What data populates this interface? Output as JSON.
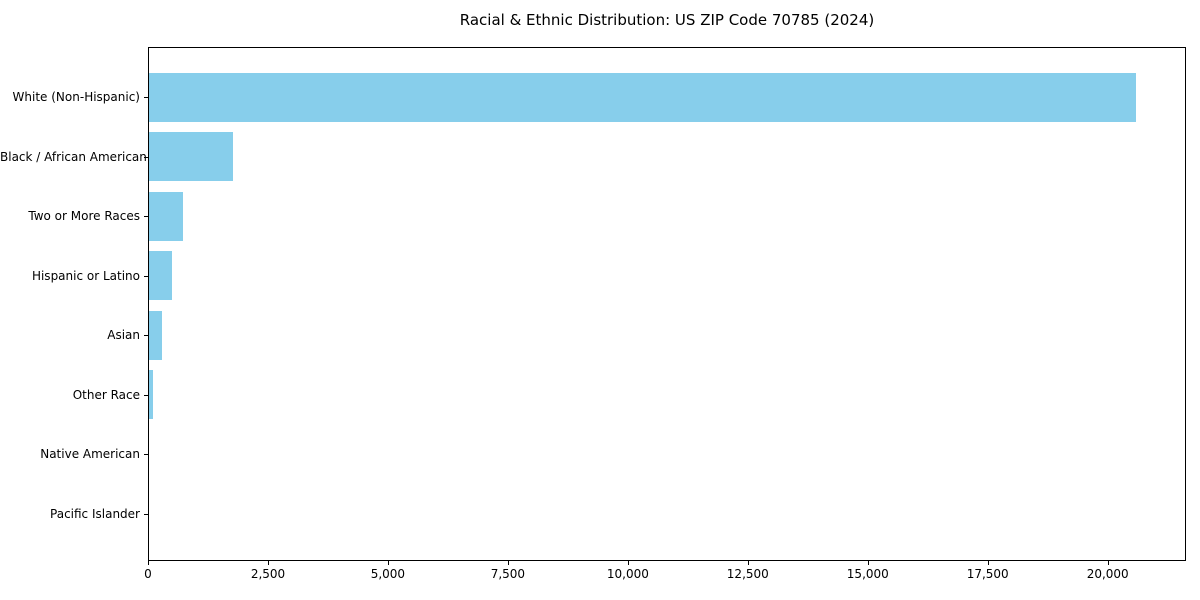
{
  "chart_data": {
    "type": "bar",
    "orientation": "horizontal",
    "title": "Racial & Ethnic Distribution: US ZIP Code 70785 (2024)",
    "categories": [
      "White (Non-Hispanic)",
      "Black / African American",
      "Two or More Races",
      "Hispanic or Latino",
      "Asian",
      "Other Race",
      "Native American",
      "Pacific Islander"
    ],
    "values": [
      20560,
      1750,
      710,
      480,
      280,
      85,
      0,
      0
    ],
    "x_ticks": [
      0,
      2500,
      5000,
      7500,
      10000,
      12500,
      15000,
      17500,
      20000
    ],
    "x_tick_labels": [
      "0",
      "2,500",
      "5,000",
      "7,500",
      "10,000",
      "12,500",
      "15,000",
      "17,500",
      "20,000"
    ],
    "xlim": [
      0,
      21590
    ],
    "bar_color": "#87CEEB",
    "axis_color": "#000000",
    "background_color": "#FFFFFF",
    "grid": false
  }
}
